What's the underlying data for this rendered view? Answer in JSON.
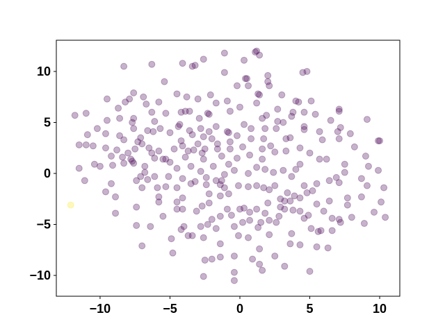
{
  "chart_data": {
    "type": "scatter",
    "xlim": [
      -13.13,
      11.44
    ],
    "ylim": [
      -12.04,
      13.06
    ],
    "xticks": [
      {
        "value": -10,
        "label": "−10"
      },
      {
        "value": -5,
        "label": "−5"
      },
      0,
      5,
      10
    ],
    "yticks": [
      {
        "value": -10,
        "label": "−10"
      },
      {
        "value": -5,
        "label": "−5"
      },
      0,
      5,
      10
    ],
    "grid": false,
    "opacity": 0.3,
    "series": [
      {
        "color": "#440154",
        "x": [
          1.1,
          -1.1,
          0.3,
          1.2,
          1.4,
          -2.6,
          -4.1,
          -3.4,
          -3.2,
          -8.3,
          -6.3,
          -1.1,
          0.4,
          0.5,
          2.0,
          2.0,
          2.1,
          4.5,
          4.8,
          -5.4,
          -0.2,
          0.6,
          1.3,
          1.4,
          -4.5,
          -3.8,
          -3.0,
          -2.1,
          -7.6,
          -6.9,
          -7.9,
          -8.2,
          -9.5,
          -8.7,
          -6.7,
          -5.8,
          -3.9,
          -2.3,
          -2.2,
          -1.7,
          -0.9,
          0.0,
          1.2,
          3.0,
          4.0,
          4.2,
          5.1,
          7.1,
          7.1,
          6.5,
          4.6,
          3.8,
          2.7,
          1.9,
          1.6,
          -0.7,
          -6.3,
          -5.3,
          -4.2,
          -3.6,
          -7.6,
          -8.6,
          -11.8,
          -11.0,
          -10.9,
          -11.5,
          -11.0,
          -10.5,
          -9.6,
          -9.6,
          -8.6,
          -8.3,
          -8.8,
          -7.6,
          -6.6,
          -6.2,
          -5.7,
          -5.0,
          -4.4,
          -4.3,
          -3.6,
          -2.8,
          -2.2,
          -1.7,
          -0.9,
          -0.8,
          0.3,
          0.8,
          1.8,
          3.1,
          4.6,
          4.6,
          5.7,
          5.9,
          7.2,
          7.0,
          7.1,
          8.2,
          9.1,
          9.9,
          10.0,
          9.0,
          9.2,
          9.9,
          10.3,
          10.1,
          10.4,
          9.6,
          8.7,
          9.1,
          7.7,
          8.0,
          7.1,
          7.2,
          6.0,
          5.6,
          5.8,
          6.3,
          5.5,
          5.0,
          4.3,
          3.2,
          1.6,
          1.4,
          0.9,
          -0.4,
          -0.4,
          -0.4,
          -1.4,
          -1.4,
          -2.0,
          -2.6,
          -2.5,
          -3.7,
          -4.9,
          -4.8,
          -4.2,
          -4.5,
          -5.5,
          -6.4,
          -7.0,
          -7.4,
          -8.9,
          -9.2,
          -9.6,
          -10.4,
          -11.5,
          -11.1,
          -10.0,
          -9.1,
          -8.3,
          -7.7,
          -7.8,
          -7.6,
          -6.8,
          -6.8,
          -7.4,
          -6.6,
          -5.9,
          -5.8,
          -5.3,
          -7.0,
          -7.1,
          -6.1,
          -5.1,
          -4.5,
          -4.1,
          -3.5,
          -3.2,
          -2.4,
          -2.2,
          -2.2,
          -1.4,
          -1.4,
          -0.9,
          -0.6,
          -0.4,
          0.0,
          0.3,
          0.6,
          0.6,
          1.2,
          1.8,
          2.4,
          3.1,
          3.7,
          4.0,
          4.3,
          4.6,
          4.8,
          5.5,
          6.4,
          6.9,
          7.1,
          7.5,
          7.5,
          6.2,
          5.7,
          5.0,
          4.3,
          3.3,
          2.5,
          1.6,
          0.7,
          0.2,
          -0.7,
          -1.6,
          -2.5,
          -2.7,
          -3.3,
          -3.7,
          -4.7,
          -5.8,
          -6.3,
          -7.0,
          -7.3,
          -8.0,
          -8.4,
          -6.1,
          -7.1,
          -5.3,
          -3.5,
          -2.6,
          -1.9,
          -1.1,
          -0.8,
          -0.4,
          -0.2,
          -1.4,
          -1.1,
          -0.1,
          1.2,
          1.7,
          2.1,
          2.5,
          2.9,
          3.2,
          3.4,
          3.6,
          3.9,
          4.3,
          4.3,
          3.8,
          3.2,
          2.9,
          2.8,
          2.0,
          1.8,
          2.1,
          1.5,
          1.2,
          0.7,
          0.7,
          0.2,
          1.3,
          2.1,
          2.6,
          3.7,
          4.6,
          5.1,
          4.9,
          5.5,
          6.4,
          6.6,
          5.2,
          6.6,
          7.7,
          8.9,
          -5.8,
          -4.5,
          -4.1,
          -3.1,
          -2.8,
          -2.3,
          -2.0,
          -1.7,
          -2.6,
          -4.0,
          -0.1,
          0.6,
          1.4,
          2.5,
          3.6,
          -7.4,
          -8.9,
          -3.4,
          -4.1,
          -2.7,
          -0.8,
          -6.5,
          -5.0,
          -4.5,
          -3.9,
          -2.8,
          -2.4,
          -1.3,
          -1.7,
          -1.3,
          1.6,
          2.2,
          3.3,
          3.6,
          2.6,
          1.7,
          0.8,
          -0.2,
          -0.7,
          -1.6,
          -2.0,
          -2.6,
          -3.4,
          -3.0,
          -4.1,
          -5.5,
          -6.1,
          -7.5,
          -9.2,
          -10.2,
          -9.5,
          -7.7,
          -4.2,
          -2.9,
          2.7,
          3.7,
          5.4,
          7.9,
          8.7
        ],
        "y": [
          11.9,
          11.8,
          11.1,
          12.0,
          11.6,
          11.2,
          10.8,
          10.5,
          10.6,
          10.5,
          10.7,
          9.9,
          9.3,
          9.3,
          9.6,
          9.0,
          8.6,
          9.9,
          10.0,
          9.0,
          8.6,
          8.6,
          7.8,
          7.7,
          7.8,
          7.5,
          7.3,
          7.7,
          7.9,
          7.5,
          7.3,
          7.0,
          7.3,
          6.4,
          6.8,
          7.0,
          6.1,
          5.9,
          5.8,
          6.9,
          7.1,
          6.5,
          6.9,
          7.7,
          7.1,
          7.0,
          7.1,
          6.3,
          6.1,
          5.2,
          6.0,
          6.0,
          6.3,
          5.7,
          5.4,
          6.1,
          6.0,
          5.9,
          6.0,
          6.1,
          5.4,
          5.4,
          5.7,
          5.9,
          3.8,
          2.8,
          2.8,
          2.7,
          2.5,
          3.9,
          3.7,
          3.3,
          2.3,
          4.4,
          4.2,
          4.1,
          4.4,
          4.0,
          4.6,
          4.8,
          4.2,
          4.4,
          4.1,
          4.6,
          4.1,
          4.0,
          4.8,
          4.4,
          4.4,
          5.0,
          4.6,
          4.3,
          4.1,
          3.3,
          4.5,
          4.1,
          3.4,
          2.6,
          5.3,
          3.2,
          3.2,
          1.7,
          0.7,
          0.3,
          -1.4,
          -2.8,
          -4.3,
          -3.8,
          -2.3,
          -1.2,
          -2.4,
          -4.3,
          -4.5,
          -4.8,
          -3.7,
          -5.7,
          -5.6,
          -7.3,
          -7.2,
          -9.6,
          -7.0,
          -9.1,
          -9.5,
          -8.9,
          -8.4,
          -9.7,
          -10.5,
          -8.1,
          -6.9,
          -8.2,
          -8.4,
          -10.1,
          -8.5,
          -6.1,
          -6.4,
          -7.8,
          -5.5,
          -3.5,
          -4.2,
          -5.2,
          -7.1,
          -5.1,
          -3.9,
          -1.0,
          -1.8,
          0.9,
          0.5,
          -0.7,
          0.7,
          0.8,
          1.0,
          1.2,
          1.4,
          1.0,
          0.7,
          0.1,
          -0.7,
          -0.6,
          -1.4,
          -2.3,
          -1.3,
          -1.4,
          -0.3,
          -0.3,
          -0.3,
          -1.4,
          -0.5,
          -1.0,
          -0.8,
          -1.1,
          -2.0,
          -2.9,
          -2.2,
          -4.2,
          -3.5,
          -4.1,
          -5.2,
          -3.5,
          -3.4,
          -1.3,
          0.0,
          0.6,
          0.4,
          0.1,
          0.3,
          -0.3,
          0.4,
          0.9,
          -1.2,
          -1.9,
          -1.0,
          -0.7,
          -0.4,
          -0.9,
          0.1,
          0.9,
          1.4,
          1.4,
          2.0,
          2.5,
          2.2,
          2.1,
          2.4,
          1.8,
          2.6,
          2.4,
          2.4,
          2.4,
          2.0,
          2.3,
          2.2,
          2.4,
          2.2,
          2.0,
          2.9,
          3.1,
          2.0,
          1.6,
          5.1,
          3.5,
          1.4,
          0.7,
          1.4,
          0.7,
          -0.1,
          0.9,
          0.3,
          1.5,
          -1.1,
          -1.4,
          -1.2,
          -1.2,
          -1.4,
          -1.6,
          -1.2,
          -2.5,
          -2.7,
          -1.9,
          -2.7,
          -2.2,
          -2.4,
          -3.7,
          -3.6,
          -3.5,
          -3.3,
          -4.2,
          -2.9,
          -3.9,
          -4.6,
          -4.8,
          -3.5,
          -3.8,
          -4.6,
          -4.8,
          -5.3,
          -6.0,
          -4.8,
          -5.9,
          -4.4,
          -5.4,
          -4.1,
          -3.0,
          -2.7,
          -4.4,
          -1.7,
          -5.6,
          -3.1,
          -4.9,
          -2.8,
          -2.8,
          -3.5,
          -3.7,
          -5.2,
          -5.0,
          -4.5,
          -5.4,
          -6.3,
          -5.2,
          -6.1,
          -6.3,
          -7.4,
          -8.1,
          -6.9,
          -3.3,
          -2.3,
          -6.1,
          -2.4,
          -3.2,
          -2.0,
          2.5,
          1.1,
          0.5,
          1.6,
          0.2,
          -0.4,
          -0.7,
          -0.7,
          1.7,
          1.4,
          2.7,
          3.4,
          3.5,
          4.4,
          3.4,
          3.4,
          3.7,
          3.1,
          2.9,
          3.4,
          3.6,
          3.8,
          2.9,
          2.7,
          1.4,
          1.5,
          2.4,
          1.7,
          4.4,
          5.2,
          5.0,
          3.2,
          5.4,
          5.1,
          5.6,
          5.8,
          3.9,
          -0.5
        ]
      },
      {
        "color": "#fde725",
        "x": [
          -12.1
        ],
        "y": [
          -3.1
        ]
      }
    ]
  }
}
